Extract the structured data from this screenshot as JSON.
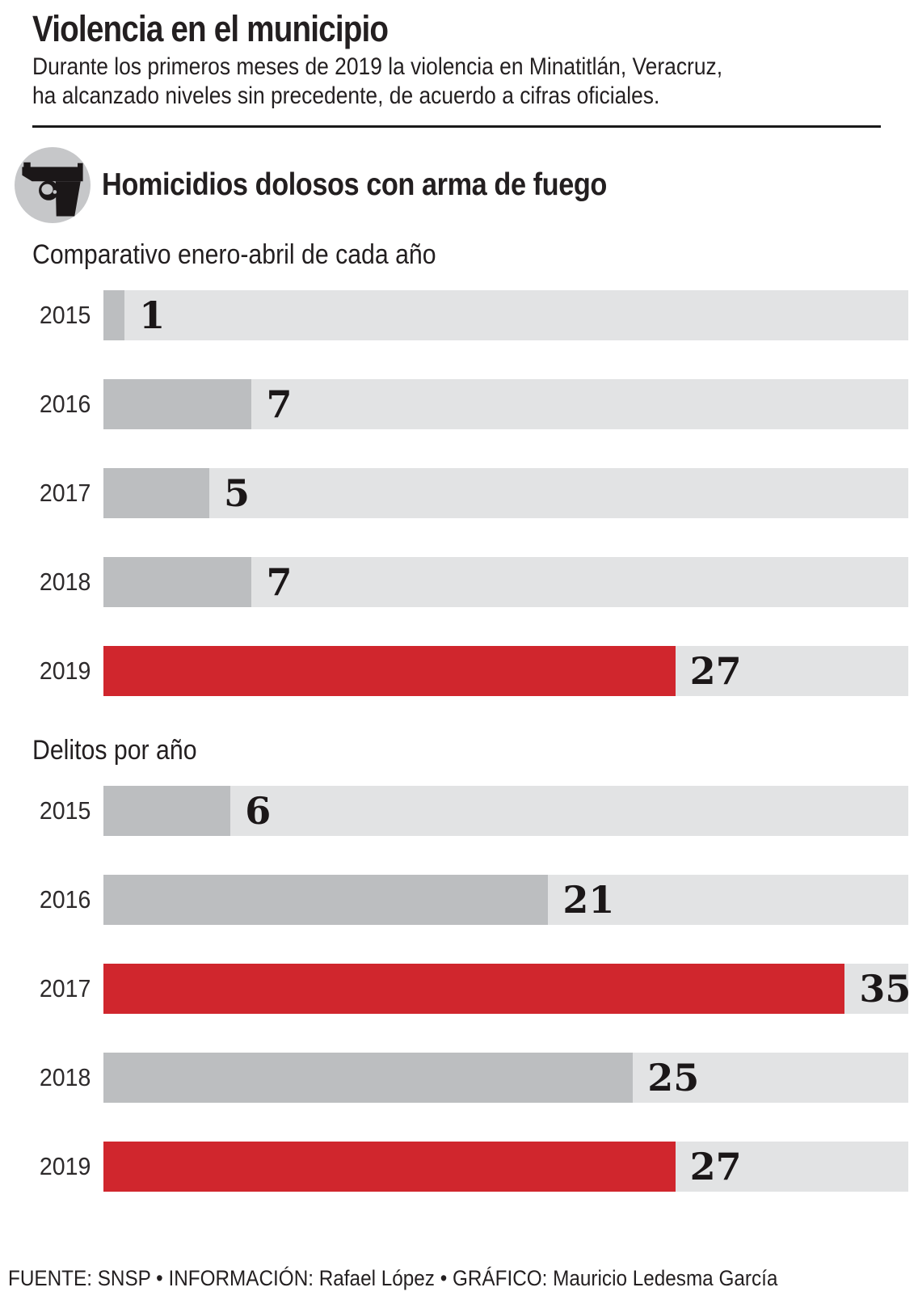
{
  "page": {
    "title": "Violencia en el municipio",
    "subtitle_line1": "Durante los primeros meses de 2019 la violencia en Minatitlán, Veracruz,",
    "subtitle_line2": "ha alcanzado niveles sin precedente, de acuerdo a cifras oficiales.",
    "footer": "FUENTE: SNSP • INFORMACIÓN: Rafael López • GRÁFICO: Mauricio Ledesma García"
  },
  "section": {
    "icon": "pistol-icon",
    "heading": "Homicidios dolosos con arma de fuego"
  },
  "colors": {
    "red": "#d0262d",
    "bar_gray": "#bcbec0",
    "track_gray": "#e2e3e4",
    "circle_gray": "#c6c7c9",
    "ink": "#231f20"
  },
  "chart_data": [
    {
      "type": "bar",
      "orientation": "horizontal",
      "title": "Comparativo enero-abril de cada año",
      "categories": [
        "2015",
        "2016",
        "2017",
        "2018",
        "2019"
      ],
      "values": [
        1,
        7,
        5,
        7,
        27
      ],
      "highlight": [
        false,
        false,
        false,
        false,
        true
      ],
      "xlim": [
        0,
        38
      ],
      "grid": false,
      "legend": "none"
    },
    {
      "type": "bar",
      "orientation": "horizontal",
      "title": "Delitos por año",
      "categories": [
        "2015",
        "2016",
        "2017",
        "2018",
        "2019"
      ],
      "values": [
        6,
        21,
        35,
        25,
        27
      ],
      "highlight": [
        false,
        false,
        true,
        false,
        true
      ],
      "xlim": [
        0,
        38
      ],
      "grid": false,
      "legend": "none"
    }
  ]
}
